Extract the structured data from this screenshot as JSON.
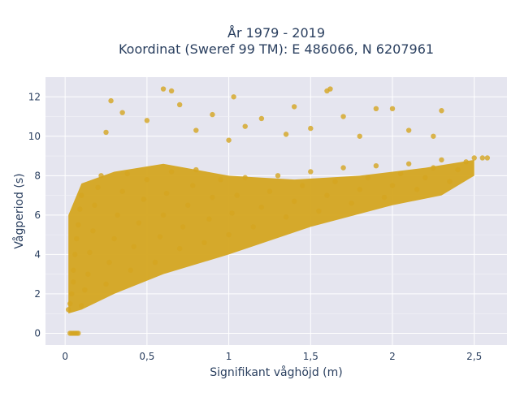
{
  "chart_data": {
    "type": "scatter",
    "title_line1": "År 1979 - 2019",
    "title_line2": "Koordinat (Sweref 99 TM): E 486066, N 6207961",
    "xlabel": "Signifikant våghöjd (m)",
    "ylabel": "Vågperiod (s)",
    "xlim": [
      -0.12,
      2.7
    ],
    "ylim": [
      -0.6,
      13.0
    ],
    "x_ticks": [
      0,
      0.5,
      1,
      1.5,
      2,
      2.5
    ],
    "x_tick_labels": [
      "0",
      "0,5",
      "1",
      "1,5",
      "2",
      "2,5"
    ],
    "y_ticks": [
      0,
      2,
      4,
      6,
      8,
      10,
      12
    ],
    "y_tick_labels": [
      "0",
      "2",
      "4",
      "6",
      "8",
      "10",
      "12"
    ],
    "grid": true,
    "marker_color": "#d4a520",
    "plot_bg": "#e5e5ef",
    "series": [
      {
        "points": [
          [
            0.02,
            1.2
          ],
          [
            0.03,
            1.5
          ],
          [
            0.04,
            2.0
          ],
          [
            0.05,
            2.6
          ],
          [
            0.05,
            3.2
          ],
          [
            0.06,
            4.0
          ],
          [
            0.07,
            4.8
          ],
          [
            0.08,
            5.5
          ],
          [
            0.09,
            6.3
          ],
          [
            0.1,
            7.0
          ],
          [
            0.1,
            1.4
          ],
          [
            0.12,
            2.2
          ],
          [
            0.14,
            3.0
          ],
          [
            0.15,
            4.1
          ],
          [
            0.17,
            5.2
          ],
          [
            0.18,
            6.5
          ],
          [
            0.2,
            7.4
          ],
          [
            0.22,
            8.0
          ],
          [
            0.25,
            2.5
          ],
          [
            0.27,
            3.6
          ],
          [
            0.3,
            4.8
          ],
          [
            0.32,
            6.0
          ],
          [
            0.35,
            7.2
          ],
          [
            0.38,
            8.1
          ],
          [
            0.4,
            3.2
          ],
          [
            0.42,
            4.4
          ],
          [
            0.45,
            5.6
          ],
          [
            0.48,
            6.8
          ],
          [
            0.5,
            7.8
          ],
          [
            0.55,
            3.6
          ],
          [
            0.58,
            4.9
          ],
          [
            0.6,
            6.0
          ],
          [
            0.62,
            7.1
          ],
          [
            0.65,
            8.2
          ],
          [
            0.7,
            4.3
          ],
          [
            0.72,
            5.4
          ],
          [
            0.75,
            6.5
          ],
          [
            0.78,
            7.5
          ],
          [
            0.8,
            8.3
          ],
          [
            0.85,
            4.6
          ],
          [
            0.88,
            5.8
          ],
          [
            0.9,
            6.9
          ],
          [
            0.95,
            7.8
          ],
          [
            1.0,
            5.0
          ],
          [
            1.02,
            6.1
          ],
          [
            1.05,
            7.0
          ],
          [
            1.1,
            7.9
          ],
          [
            1.15,
            5.4
          ],
          [
            1.2,
            6.4
          ],
          [
            1.25,
            7.2
          ],
          [
            1.3,
            8.0
          ],
          [
            1.35,
            5.9
          ],
          [
            1.4,
            6.7
          ],
          [
            1.45,
            7.5
          ],
          [
            1.5,
            8.2
          ],
          [
            1.55,
            6.2
          ],
          [
            1.6,
            7.0
          ],
          [
            1.65,
            7.7
          ],
          [
            1.7,
            8.4
          ],
          [
            1.75,
            6.6
          ],
          [
            1.8,
            7.3
          ],
          [
            1.85,
            7.9
          ],
          [
            1.9,
            8.5
          ],
          [
            1.95,
            6.9
          ],
          [
            2.0,
            7.5
          ],
          [
            2.05,
            8.1
          ],
          [
            2.1,
            8.6
          ],
          [
            2.15,
            7.3
          ],
          [
            2.2,
            7.9
          ],
          [
            2.25,
            8.4
          ],
          [
            2.3,
            8.8
          ],
          [
            2.35,
            7.7
          ],
          [
            2.4,
            8.3
          ],
          [
            2.45,
            8.7
          ],
          [
            2.5,
            8.9
          ],
          [
            2.55,
            8.9
          ],
          [
            2.58,
            8.9
          ],
          [
            0.25,
            10.2
          ],
          [
            0.28,
            11.8
          ],
          [
            0.35,
            11.2
          ],
          [
            0.5,
            10.8
          ],
          [
            0.6,
            12.4
          ],
          [
            0.65,
            12.3
          ],
          [
            0.7,
            11.6
          ],
          [
            0.8,
            10.3
          ],
          [
            0.9,
            11.1
          ],
          [
            1.0,
            9.8
          ],
          [
            1.03,
            12.0
          ],
          [
            1.1,
            10.5
          ],
          [
            1.2,
            10.9
          ],
          [
            1.35,
            10.1
          ],
          [
            1.4,
            11.5
          ],
          [
            1.5,
            10.4
          ],
          [
            1.6,
            12.3
          ],
          [
            1.62,
            12.4
          ],
          [
            1.7,
            11.0
          ],
          [
            1.8,
            10.0
          ],
          [
            1.9,
            11.4
          ],
          [
            2.0,
            11.4
          ],
          [
            2.1,
            10.3
          ],
          [
            2.25,
            10.0
          ],
          [
            2.3,
            11.3
          ],
          [
            0.03,
            0.0
          ],
          [
            0.04,
            0.0
          ],
          [
            0.05,
            0.0
          ],
          [
            0.06,
            0.0
          ],
          [
            0.07,
            0.0
          ],
          [
            0.08,
            0.0
          ]
        ]
      }
    ]
  }
}
